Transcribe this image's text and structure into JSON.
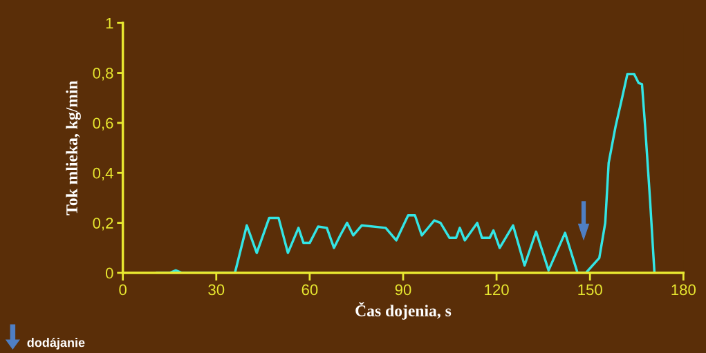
{
  "chart_data": {
    "type": "line",
    "xlabel": "Čas dojenia, s",
    "ylabel": "Tok mlieka, kg/min",
    "xlim": [
      0,
      180
    ],
    "ylim": [
      0,
      1
    ],
    "xticks": [
      0,
      30,
      60,
      90,
      120,
      150,
      180
    ],
    "yticks": [
      0,
      {
        "value": 0.2,
        "label": "0,2"
      },
      {
        "value": 0.4,
        "label": "0,4"
      },
      {
        "value": 0.6,
        "label": "0,6"
      },
      {
        "value": 0.8,
        "label": "0,8"
      },
      1
    ],
    "grid": false,
    "legend": false,
    "marker": "none",
    "line_style": "solid",
    "annotations": [
      "dodájanie"
    ],
    "series": [
      {
        "color": "#33e5e5",
        "x": [
          11,
          15,
          17,
          19,
          25,
          36,
          39.8,
          43,
          47,
          50,
          53,
          56.4,
          58,
          60,
          62.7,
          65.5,
          67.8,
          69.8,
          72,
          74,
          76.7,
          84.4,
          87.8,
          91.6,
          93.8,
          96,
          100,
          102,
          104.9,
          107,
          108.2,
          109.8,
          113.8,
          115.3,
          117.8,
          119,
          121,
          125.3,
          129,
          132.7,
          136.7,
          142,
          146,
          148.7,
          153,
          154.9,
          156,
          158.2,
          160.4,
          162,
          164.2,
          165.6,
          166.7,
          167.8,
          169.3,
          170.7
        ],
        "values": [
          0,
          0,
          0.01,
          0,
          0,
          0,
          0.19,
          0.08,
          0.22,
          0.22,
          0.08,
          0.18,
          0.12,
          0.12,
          0.185,
          0.18,
          0.1,
          0.15,
          0.2,
          0.15,
          0.19,
          0.18,
          0.13,
          0.23,
          0.23,
          0.15,
          0.21,
          0.2,
          0.14,
          0.14,
          0.18,
          0.13,
          0.2,
          0.14,
          0.14,
          0.17,
          0.1,
          0.19,
          0.03,
          0.165,
          0.01,
          0.16,
          0,
          0,
          0.06,
          0.2,
          0.44,
          0.585,
          0.705,
          0.795,
          0.795,
          0.76,
          0.755,
          0.57,
          0.29,
          0
        ]
      }
    ]
  }
}
